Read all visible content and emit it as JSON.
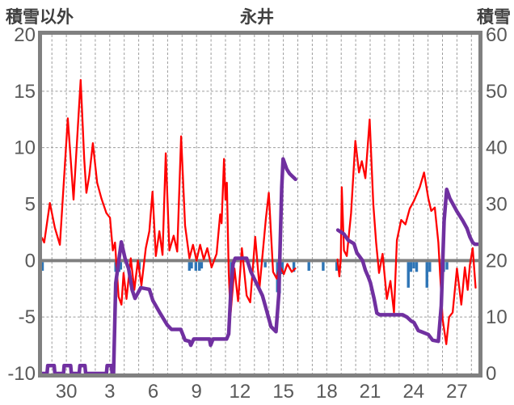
{
  "chart_data": {
    "type": "line",
    "title": "永井",
    "left_axis": {
      "title": "積雪以外",
      "min": -10,
      "max": 20,
      "ticks": [
        20,
        15,
        10,
        5,
        0,
        -5,
        -10
      ],
      "grid": [
        15,
        10,
        5,
        -5
      ]
    },
    "right_axis": {
      "title": "積雪",
      "min": 0,
      "max": 60,
      "ticks": [
        60,
        50,
        40,
        30,
        20,
        10,
        0
      ]
    },
    "x_axis": {
      "range": [
        0,
        30.5
      ],
      "tick_labels": [
        "30",
        "3",
        "6",
        "9",
        "12",
        "15",
        "18",
        "21",
        "24",
        "27"
      ],
      "tick_positions": [
        1.7,
        4.73,
        7.77,
        10.8,
        13.83,
        16.87,
        19.9,
        22.93,
        25.97,
        29.0
      ],
      "grid_start": 0.69,
      "grid_step": 1.011
    },
    "colors": {
      "frame": "#808080",
      "grid": "#9c9c9c",
      "zero_line": "#808080",
      "tick_text": "#595959",
      "red": "#ff0000",
      "purple": "#7030a0",
      "blue": "#2e75b6"
    },
    "series": [
      {
        "id": "blue-bars",
        "kind": "bars",
        "axis": "left",
        "color": "#2e75b6",
        "bar_width": 3.4,
        "points": [
          [
            0.03,
            0.9
          ],
          [
            5.15,
            1.0
          ],
          [
            5.27,
            1.2
          ],
          [
            5.38,
            1.0
          ],
          [
            5.5,
            0.8
          ],
          [
            6.8,
            0.8
          ],
          [
            10.3,
            0.9
          ],
          [
            10.45,
            0.7
          ],
          [
            10.75,
            0.9
          ],
          [
            11.0,
            0.9
          ],
          [
            11.15,
            0.7
          ],
          [
            13.22,
            1.9
          ],
          [
            15.6,
            0.6
          ],
          [
            16.45,
            2.8
          ],
          [
            16.6,
            2.9
          ],
          [
            16.8,
            1.2
          ],
          [
            17.6,
            1.0
          ],
          [
            18.65,
            0.9
          ],
          [
            19.65,
            0.9
          ],
          [
            20.6,
            0.9
          ],
          [
            25.6,
            2.4
          ],
          [
            25.78,
            1.0
          ],
          [
            25.98,
            0.7
          ],
          [
            26.18,
            1.0
          ],
          [
            26.9,
            2.4
          ],
          [
            27.1,
            1.0
          ],
          [
            27.9,
            1.3
          ],
          [
            28.07,
            1.0
          ],
          [
            28.3,
            0.8
          ]
        ]
      },
      {
        "id": "red-line",
        "kind": "line",
        "axis": "left",
        "color": "#ff0000",
        "width": 2.3,
        "segments": [
          [
            [
              0,
              2.0
            ],
            [
              0.15,
              1.6
            ],
            [
              0.55,
              5.1
            ],
            [
              0.9,
              2.9
            ],
            [
              1.25,
              1.4
            ],
            [
              1.8,
              12.6
            ],
            [
              2.2,
              5.4
            ],
            [
              2.7,
              16.0
            ],
            [
              2.95,
              9.0
            ],
            [
              3.1,
              6.0
            ],
            [
              3.3,
              7.5
            ],
            [
              3.55,
              10.4
            ],
            [
              3.85,
              6.9
            ],
            [
              4.15,
              5.5
            ],
            [
              4.5,
              4.2
            ],
            [
              4.75,
              3.8
            ],
            [
              4.95,
              0.9
            ],
            [
              5.1,
              1.6
            ],
            [
              5.35,
              -3.2
            ],
            [
              5.55,
              -3.9
            ],
            [
              5.7,
              -1.1
            ],
            [
              5.9,
              -3.4
            ],
            [
              6.2,
              0.2
            ],
            [
              6.45,
              -2.6
            ],
            [
              6.7,
              0.0
            ],
            [
              6.95,
              -2.2
            ],
            [
              7.25,
              1.1
            ],
            [
              7.5,
              2.6
            ],
            [
              7.72,
              6.1
            ],
            [
              7.95,
              0.4
            ],
            [
              8.2,
              2.6
            ],
            [
              8.42,
              0.5
            ],
            [
              8.65,
              9.5
            ],
            [
              8.9,
              0.9
            ],
            [
              9.2,
              2.2
            ],
            [
              9.45,
              0.8
            ],
            [
              9.72,
              11.0
            ],
            [
              10.0,
              3.1
            ],
            [
              10.3,
              0.2
            ],
            [
              10.55,
              1.4
            ],
            [
              10.8,
              0.0
            ],
            [
              11.05,
              1.4
            ],
            [
              11.3,
              0.1
            ],
            [
              11.55,
              1.1
            ],
            [
              11.85,
              -0.6
            ],
            [
              12.2,
              0.6
            ],
            [
              12.45,
              4.1
            ],
            [
              12.55,
              3.3
            ],
            [
              12.72,
              9.0
            ],
            [
              12.82,
              5.4
            ],
            [
              12.92,
              6.9
            ],
            [
              13.05,
              -1.0
            ],
            [
              13.17,
              -4.8
            ],
            [
              13.45,
              -0.7
            ],
            [
              13.7,
              -3.6
            ],
            [
              13.97,
              1.1
            ],
            [
              14.3,
              -3.1
            ],
            [
              14.55,
              -3.7
            ],
            [
              14.9,
              2.1
            ],
            [
              15.2,
              -2.4
            ],
            [
              15.65,
              3.8
            ],
            [
              15.85,
              6.0
            ],
            [
              16.15,
              -1.0
            ],
            [
              16.4,
              -1.6
            ],
            [
              16.6,
              -0.4
            ],
            [
              16.9,
              -1.2
            ],
            [
              17.15,
              -0.3
            ],
            [
              17.45,
              -1.0
            ],
            [
              17.7,
              -0.7
            ]
          ],
          [
            [
              20.65,
              0.1
            ],
            [
              20.78,
              -1.4
            ],
            [
              20.88,
              0.2
            ],
            [
              20.95,
              6.5
            ],
            [
              21.1,
              0.9
            ],
            [
              21.3,
              0.4
            ],
            [
              21.6,
              4.2
            ],
            [
              21.9,
              10.6
            ],
            [
              22.15,
              7.8
            ],
            [
              22.35,
              8.8
            ],
            [
              22.6,
              7.3
            ],
            [
              22.9,
              12.5
            ],
            [
              23.15,
              5.0
            ],
            [
              23.35,
              1.6
            ],
            [
              23.55,
              -1.1
            ],
            [
              23.8,
              0.6
            ],
            [
              24.1,
              -3.4
            ],
            [
              24.35,
              -1.8
            ],
            [
              24.6,
              -4.6
            ],
            [
              24.8,
              1.8
            ],
            [
              25.1,
              3.6
            ],
            [
              25.4,
              3.2
            ],
            [
              25.7,
              4.6
            ],
            [
              26.0,
              5.3
            ],
            [
              26.4,
              6.5
            ],
            [
              26.7,
              7.8
            ],
            [
              27.0,
              5.5
            ],
            [
              27.2,
              4.4
            ],
            [
              27.45,
              4.7
            ],
            [
              27.7,
              1.6
            ],
            [
              28.0,
              -5.2
            ],
            [
              28.25,
              -7.4
            ],
            [
              28.45,
              -5.0
            ],
            [
              28.7,
              -4.6
            ],
            [
              29.0,
              -0.7
            ],
            [
              29.3,
              -3.9
            ],
            [
              29.55,
              -0.6
            ],
            [
              29.75,
              -2.6
            ],
            [
              29.9,
              -0.4
            ],
            [
              30.1,
              1.1
            ],
            [
              30.3,
              -2.4
            ]
          ]
        ]
      },
      {
        "id": "purple-line",
        "kind": "line",
        "axis": "right",
        "color": "#7030a0",
        "width": 4.5,
        "segments": [
          [
            [
              0,
              0
            ],
            [
              0.35,
              0
            ],
            [
              0.4,
              1.4
            ],
            [
              0.85,
              1.4
            ],
            [
              0.9,
              0
            ],
            [
              1.5,
              0
            ],
            [
              1.55,
              1.4
            ],
            [
              2.0,
              1.4
            ],
            [
              2.05,
              0
            ],
            [
              2.6,
              0
            ],
            [
              2.65,
              1.4
            ],
            [
              3.0,
              1.4
            ],
            [
              3.05,
              0
            ],
            [
              4.5,
              0
            ],
            [
              4.55,
              1.4
            ],
            [
              4.85,
              1.4
            ],
            [
              4.9,
              0
            ],
            [
              5.0,
              0
            ],
            [
              5.15,
              16.0
            ],
            [
              5.54,
              23.3
            ],
            [
              5.8,
              20.4
            ],
            [
              6.05,
              18.6
            ],
            [
              6.3,
              14.8
            ],
            [
              6.5,
              13.3
            ],
            [
              6.9,
              15.2
            ],
            [
              7.5,
              14.9
            ],
            [
              7.75,
              12.9
            ],
            [
              8.2,
              10.9
            ],
            [
              8.75,
              8.6
            ],
            [
              9.05,
              7.8
            ],
            [
              9.7,
              7.8
            ],
            [
              10.0,
              5.9
            ],
            [
              10.3,
              5.7
            ],
            [
              10.4,
              5.0
            ],
            [
              10.6,
              6.1
            ],
            [
              11.7,
              6.1
            ],
            [
              11.78,
              5.0
            ],
            [
              11.95,
              6.1
            ],
            [
              12.9,
              6.1
            ],
            [
              13.05,
              7.0
            ],
            [
              13.2,
              14.8
            ],
            [
              13.35,
              19.4
            ],
            [
              13.5,
              20.4
            ],
            [
              14.3,
              20.4
            ],
            [
              14.6,
              18.0
            ],
            [
              15.0,
              15.9
            ],
            [
              15.4,
              13.8
            ],
            [
              15.7,
              11.1
            ],
            [
              16.0,
              8.3
            ],
            [
              16.35,
              7.4
            ],
            [
              16.55,
              14.0
            ],
            [
              16.75,
              33.0
            ],
            [
              16.85,
              38.0
            ],
            [
              17.1,
              36.2
            ],
            [
              17.3,
              35.4
            ],
            [
              17.55,
              34.8
            ],
            [
              17.72,
              34.4
            ]
          ],
          [
            [
              20.68,
              25.4
            ],
            [
              21.1,
              24.7
            ],
            [
              21.4,
              23.6
            ],
            [
              21.8,
              23.0
            ],
            [
              22.0,
              21.4
            ],
            [
              22.4,
              20.0
            ],
            [
              22.6,
              18.3
            ],
            [
              22.8,
              17.1
            ],
            [
              22.95,
              16.1
            ],
            [
              23.2,
              13.3
            ],
            [
              23.4,
              10.7
            ],
            [
              23.6,
              10.4
            ],
            [
              25.2,
              10.4
            ],
            [
              25.5,
              10.0
            ],
            [
              25.8,
              9.3
            ],
            [
              26.0,
              9.0
            ],
            [
              26.3,
              7.6
            ],
            [
              26.6,
              7.3
            ],
            [
              27.0,
              6.9
            ],
            [
              27.3,
              5.9
            ],
            [
              27.7,
              5.7
            ],
            [
              27.9,
              12.0
            ],
            [
              28.1,
              27.0
            ],
            [
              28.28,
              32.6
            ],
            [
              28.5,
              31.0
            ],
            [
              28.7,
              30.1
            ],
            [
              29.0,
              28.7
            ],
            [
              29.4,
              27.1
            ],
            [
              29.7,
              25.7
            ],
            [
              29.9,
              24.2
            ],
            [
              30.1,
              23.2
            ],
            [
              30.25,
              22.9
            ],
            [
              30.45,
              22.9
            ]
          ]
        ]
      }
    ]
  }
}
